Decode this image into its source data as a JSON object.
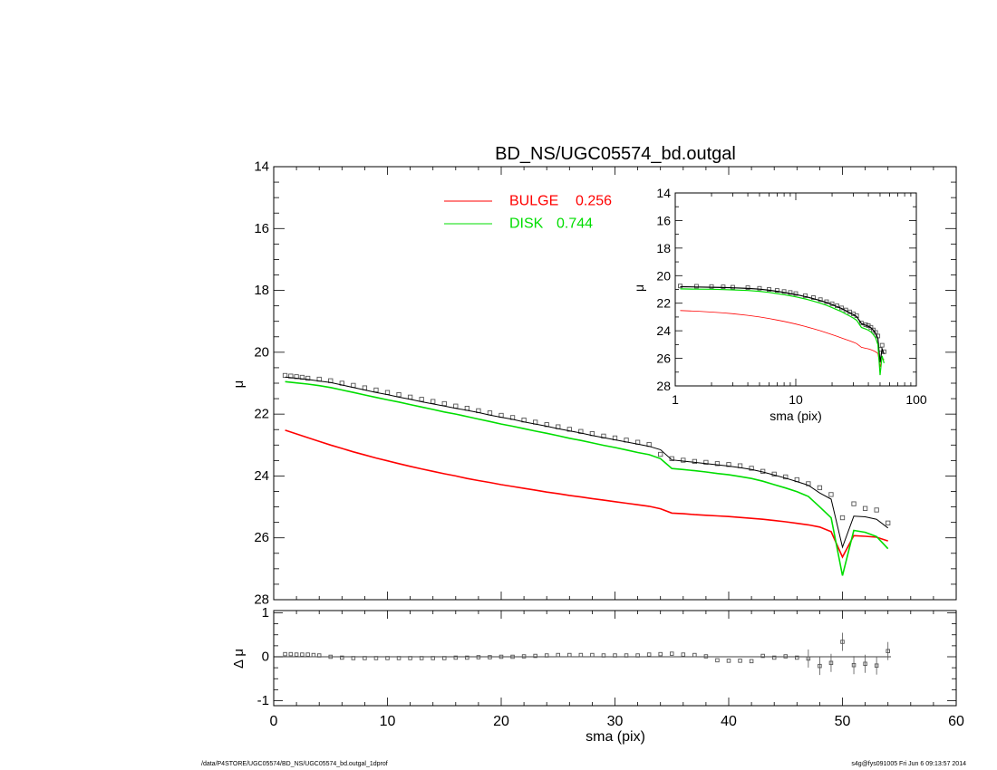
{
  "chart_data": [
    {
      "id": "main-profile",
      "type": "scatter",
      "title": "BD_NS/UGC05574_bd.outgal",
      "xlabel": "",
      "ylabel": "μ",
      "xlim": [
        0,
        60
      ],
      "ylim": [
        28,
        14
      ],
      "y_inverted": true,
      "y_ticks": [
        "14",
        "16",
        "18",
        "20",
        "22",
        "24",
        "26",
        "28"
      ],
      "legend_position": "top-center",
      "legend": [
        {
          "label": "BULGE",
          "value": "0.256",
          "color": "#ff0000"
        },
        {
          "label": "DISK",
          "value": "0.744",
          "color": "#00dd00"
        }
      ],
      "series": [
        {
          "name": "observed",
          "style": "open-squares",
          "color": "#555555",
          "x": [
            1,
            1.5,
            2,
            2.5,
            3,
            4,
            5,
            6,
            7,
            8,
            9,
            10,
            11,
            12,
            13,
            14,
            15,
            16,
            17,
            18,
            19,
            20,
            21,
            22,
            23,
            24,
            25,
            26,
            27,
            28,
            29,
            30,
            31,
            32,
            33,
            34,
            35,
            36,
            37,
            38,
            39,
            40,
            41,
            42,
            43,
            44,
            45,
            46,
            47,
            48,
            49,
            50,
            51,
            52,
            53,
            54
          ],
          "y": [
            20.75,
            20.77,
            20.79,
            20.81,
            20.84,
            20.87,
            20.92,
            21.0,
            21.07,
            21.15,
            21.22,
            21.3,
            21.37,
            21.45,
            21.52,
            21.59,
            21.66,
            21.74,
            21.81,
            21.89,
            21.96,
            22.04,
            22.11,
            22.19,
            22.26,
            22.34,
            22.41,
            22.49,
            22.56,
            22.63,
            22.71,
            22.77,
            22.84,
            22.91,
            22.98,
            23.3,
            23.44,
            23.49,
            23.53,
            23.56,
            23.6,
            23.63,
            23.67,
            23.75,
            23.85,
            23.94,
            24.03,
            24.12,
            24.25,
            24.38,
            24.6,
            25.35,
            24.9,
            25.05,
            25.1,
            25.52
          ]
        },
        {
          "name": "model",
          "style": "line",
          "color": "#000000",
          "x": [
            1,
            2,
            3,
            4,
            5,
            6,
            7,
            8,
            9,
            10,
            11,
            12,
            13,
            14,
            15,
            16,
            17,
            18,
            19,
            20,
            21,
            22,
            23,
            24,
            25,
            26,
            27,
            28,
            29,
            30,
            31,
            32,
            33,
            34,
            35,
            36,
            37,
            38,
            39,
            40,
            41,
            42,
            43,
            44,
            45,
            46,
            47,
            48,
            49,
            50,
            51,
            52,
            53,
            54
          ],
          "y": [
            20.8,
            20.84,
            20.88,
            20.93,
            20.98,
            21.06,
            21.14,
            21.22,
            21.3,
            21.37,
            21.45,
            21.52,
            21.6,
            21.67,
            21.74,
            21.81,
            21.88,
            21.95,
            22.03,
            22.1,
            22.17,
            22.25,
            22.32,
            22.39,
            22.47,
            22.54,
            22.61,
            22.69,
            22.76,
            22.83,
            22.9,
            22.97,
            23.04,
            23.15,
            23.48,
            23.52,
            23.56,
            23.6,
            23.64,
            23.68,
            23.73,
            23.79,
            23.87,
            23.97,
            24.07,
            24.18,
            24.3,
            24.55,
            24.75,
            26.3,
            25.3,
            25.32,
            25.4,
            25.68
          ]
        },
        {
          "name": "BULGE",
          "style": "line",
          "color": "#ff0000",
          "x": [
            1,
            2,
            3,
            4,
            5,
            6,
            7,
            8,
            9,
            10,
            11,
            12,
            13,
            14,
            15,
            16,
            17,
            18,
            19,
            20,
            21,
            22,
            23,
            24,
            25,
            26,
            27,
            28,
            29,
            30,
            31,
            32,
            33,
            34,
            35,
            36,
            37,
            38,
            39,
            40,
            41,
            42,
            43,
            44,
            45,
            46,
            47,
            48,
            49,
            50,
            51,
            52,
            53,
            54
          ],
          "y": [
            22.52,
            22.64,
            22.76,
            22.88,
            23.0,
            23.11,
            23.22,
            23.32,
            23.42,
            23.51,
            23.6,
            23.69,
            23.77,
            23.85,
            23.93,
            24.0,
            24.08,
            24.15,
            24.21,
            24.28,
            24.34,
            24.4,
            24.46,
            24.52,
            24.57,
            24.63,
            24.68,
            24.73,
            24.78,
            24.83,
            24.88,
            24.93,
            24.98,
            25.06,
            25.2,
            25.22,
            25.25,
            25.27,
            25.29,
            25.31,
            25.34,
            25.37,
            25.4,
            25.44,
            25.48,
            25.53,
            25.58,
            25.65,
            25.8,
            26.62,
            25.93,
            25.95,
            25.98,
            26.1
          ]
        },
        {
          "name": "DISK",
          "style": "line",
          "color": "#00dd00",
          "x": [
            1,
            2,
            3,
            4,
            5,
            6,
            7,
            8,
            9,
            10,
            11,
            12,
            13,
            14,
            15,
            16,
            17,
            18,
            19,
            20,
            21,
            22,
            23,
            24,
            25,
            26,
            27,
            28,
            29,
            30,
            31,
            32,
            33,
            34,
            35,
            36,
            37,
            38,
            39,
            40,
            41,
            42,
            43,
            44,
            45,
            46,
            47,
            48,
            49,
            50,
            51,
            52,
            53,
            54
          ],
          "y": [
            20.95,
            20.99,
            21.03,
            21.08,
            21.14,
            21.22,
            21.3,
            21.38,
            21.46,
            21.54,
            21.61,
            21.69,
            21.77,
            21.85,
            21.93,
            22.0,
            22.08,
            22.16,
            22.24,
            22.32,
            22.39,
            22.47,
            22.55,
            22.62,
            22.7,
            22.78,
            22.85,
            22.93,
            23.01,
            23.08,
            23.16,
            23.24,
            23.31,
            23.44,
            23.76,
            23.79,
            23.83,
            23.87,
            23.92,
            23.96,
            24.02,
            24.08,
            24.17,
            24.28,
            24.39,
            24.51,
            24.66,
            25.0,
            25.35,
            27.22,
            25.76,
            25.82,
            25.96,
            26.35
          ]
        }
      ]
    },
    {
      "id": "inset-log",
      "type": "scatter",
      "xlabel": "sma (pix)",
      "ylabel": "μ",
      "x_scale": "log",
      "xlim": [
        1,
        100
      ],
      "ylim": [
        28,
        14
      ],
      "y_inverted": true,
      "x_ticks": [
        "1",
        "10",
        "100"
      ],
      "y_ticks": [
        "14",
        "16",
        "18",
        "20",
        "22",
        "24",
        "26",
        "28"
      ],
      "series": [
        {
          "name": "observed",
          "style": "open-squares",
          "color": "#555555",
          "x": [
            1.1,
            1.5,
            2,
            2.5,
            3,
            4,
            5,
            6,
            7,
            8,
            9,
            10,
            12,
            14,
            16,
            18,
            20,
            22,
            24,
            26,
            28,
            30,
            32,
            35,
            38,
            40,
            42,
            44,
            46,
            48,
            50,
            52,
            54
          ],
          "y": [
            20.75,
            20.77,
            20.79,
            20.81,
            20.84,
            20.87,
            20.92,
            21.0,
            21.07,
            21.15,
            21.22,
            21.3,
            21.45,
            21.59,
            21.74,
            21.89,
            22.04,
            22.19,
            22.34,
            22.49,
            22.63,
            22.77,
            22.91,
            23.44,
            23.56,
            23.63,
            23.75,
            23.94,
            24.12,
            24.38,
            25.35,
            25.05,
            25.52
          ]
        },
        {
          "name": "model",
          "style": "line",
          "color": "#000000",
          "x": [
            1.1,
            1.5,
            2,
            2.5,
            3,
            4,
            5,
            6,
            7,
            8,
            9,
            10,
            12,
            14,
            16,
            18,
            20,
            22,
            24,
            26,
            28,
            30,
            32,
            35,
            38,
            40,
            42,
            44,
            46,
            48,
            50,
            52,
            54
          ],
          "y": [
            20.8,
            20.82,
            20.84,
            20.86,
            20.88,
            20.93,
            20.98,
            21.06,
            21.14,
            21.22,
            21.3,
            21.37,
            21.52,
            21.67,
            21.81,
            21.95,
            22.1,
            22.25,
            22.39,
            22.54,
            22.69,
            22.83,
            22.97,
            23.48,
            23.6,
            23.68,
            23.79,
            23.97,
            24.18,
            24.55,
            26.3,
            25.32,
            25.68
          ]
        },
        {
          "name": "BULGE",
          "style": "line",
          "color": "#ff0000",
          "x": [
            1.1,
            1.5,
            2,
            2.5,
            3,
            4,
            5,
            6,
            7,
            8,
            9,
            10,
            12,
            14,
            16,
            18,
            20,
            22,
            24,
            26,
            28,
            30,
            32,
            35,
            38,
            40,
            42,
            44,
            46,
            48,
            50,
            52,
            54
          ],
          "y": [
            22.53,
            22.58,
            22.64,
            22.7,
            22.76,
            22.88,
            23.0,
            23.11,
            23.22,
            23.32,
            23.42,
            23.51,
            23.69,
            23.85,
            24.0,
            24.15,
            24.28,
            24.4,
            24.52,
            24.63,
            24.73,
            24.83,
            24.93,
            25.2,
            25.27,
            25.31,
            25.37,
            25.44,
            25.53,
            25.65,
            26.62,
            25.95,
            26.1
          ]
        },
        {
          "name": "DISK",
          "style": "line",
          "color": "#00dd00",
          "x": [
            1.1,
            1.5,
            2,
            2.5,
            3,
            4,
            5,
            6,
            7,
            8,
            9,
            10,
            12,
            14,
            16,
            18,
            20,
            22,
            24,
            26,
            28,
            30,
            32,
            35,
            38,
            40,
            42,
            44,
            46,
            48,
            50,
            52,
            54
          ],
          "y": [
            20.96,
            20.98,
            20.99,
            21.01,
            21.03,
            21.08,
            21.14,
            21.22,
            21.3,
            21.38,
            21.46,
            21.54,
            21.69,
            21.85,
            22.0,
            22.16,
            22.32,
            22.47,
            22.62,
            22.78,
            22.93,
            23.08,
            23.24,
            23.76,
            23.87,
            23.96,
            24.08,
            24.28,
            24.51,
            25.0,
            27.22,
            25.82,
            26.35
          ]
        }
      ]
    },
    {
      "id": "residuals",
      "type": "scatter",
      "xlabel": "sma (pix)",
      "ylabel": "Δ μ",
      "xlim": [
        0,
        60
      ],
      "ylim": [
        -1.05,
        1.05
      ],
      "x_ticks": [
        "0",
        "10",
        "20",
        "30",
        "40",
        "50",
        "60"
      ],
      "y_ticks": [
        "1",
        "0",
        "-1"
      ],
      "series": [
        {
          "name": "residual",
          "style": "open-squares",
          "color": "#555555",
          "x": [
            1,
            1.5,
            2,
            2.5,
            3,
            3.5,
            4,
            5,
            6,
            7,
            8,
            9,
            10,
            11,
            12,
            13,
            14,
            15,
            16,
            17,
            18,
            19,
            20,
            21,
            22,
            23,
            24,
            25,
            26,
            27,
            28,
            29,
            30,
            31,
            32,
            33,
            34,
            35,
            36,
            37,
            38,
            39,
            40,
            41,
            42,
            43,
            44,
            45,
            46,
            47,
            48,
            49,
            50,
            51,
            52,
            53,
            54
          ],
          "y": [
            0.06,
            0.06,
            0.05,
            0.05,
            0.05,
            0.04,
            0.03,
            0.0,
            -0.02,
            -0.03,
            -0.03,
            -0.03,
            -0.03,
            -0.03,
            -0.03,
            -0.03,
            -0.03,
            -0.03,
            -0.02,
            -0.02,
            -0.01,
            -0.01,
            0.0,
            0.0,
            0.01,
            0.02,
            0.03,
            0.04,
            0.04,
            0.04,
            0.04,
            0.03,
            0.03,
            0.03,
            0.03,
            0.05,
            0.06,
            0.07,
            0.05,
            0.04,
            0.01,
            -0.08,
            -0.09,
            -0.09,
            -0.1,
            0.02,
            -0.02,
            0.01,
            -0.02,
            -0.04,
            -0.21,
            -0.14,
            0.34,
            -0.19,
            -0.16,
            -0.2,
            0.13
          ]
        }
      ]
    }
  ],
  "footer": {
    "left": "/data/P4STORE/UGC05574/BD_NS/UGC05574_bd.outgal_1dprof",
    "right": "s4g@fys091005  Fri Jun  6 09:13:57 2014"
  }
}
